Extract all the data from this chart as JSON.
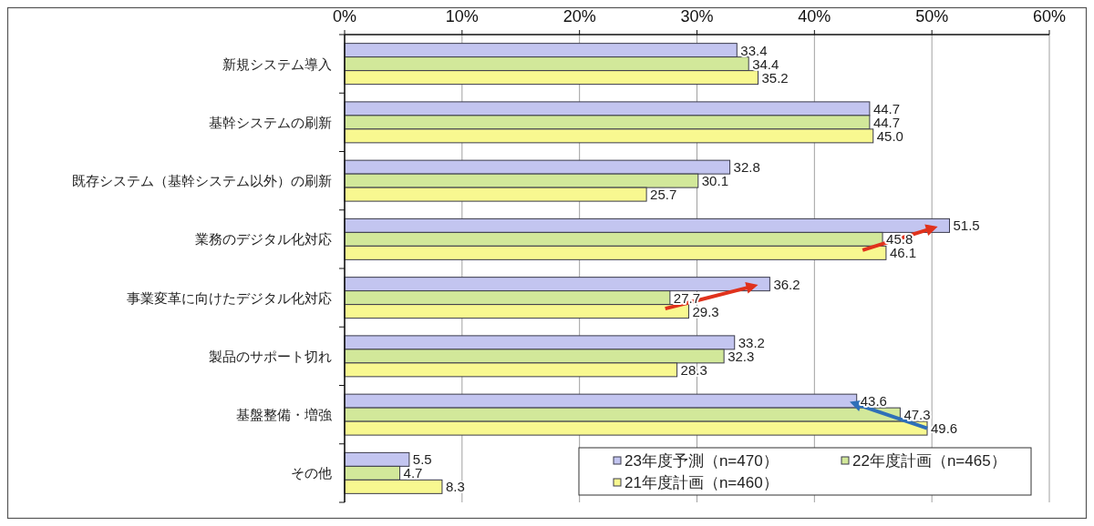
{
  "chart_data": {
    "type": "bar",
    "orientation": "horizontal",
    "categories": [
      "新規システム導入",
      "基幹システムの刷新",
      "既存システム（基幹システム以外）の刷新",
      "業務のデジタル化対応",
      "事業変革に向けたデジタル化対応",
      "製品のサポート切れ",
      "基盤整備・増強",
      "その他"
    ],
    "series": [
      {
        "name": "23年度予測（n=470）",
        "color": "#c3c5f0",
        "values": [
          33.4,
          44.7,
          32.8,
          51.5,
          36.2,
          33.2,
          43.6,
          5.5
        ],
        "value_labels": [
          "33.4",
          "44.7",
          "32.8",
          "51.5",
          "36.2",
          "33.2",
          "43.6",
          "5.5"
        ]
      },
      {
        "name": "22年度計画（n=465）",
        "color": "#d2e89a",
        "values": [
          34.4,
          44.7,
          30.1,
          45.8,
          27.7,
          32.3,
          47.3,
          4.7
        ],
        "value_labels": [
          "34.4",
          "44.7",
          "30.1",
          "45.8",
          "27.7",
          "32.3",
          "47.3",
          "4.7"
        ]
      },
      {
        "name": "21年度計画（n=460）",
        "color": "#f8f890",
        "values": [
          35.2,
          45.0,
          25.7,
          46.1,
          29.3,
          28.3,
          49.6,
          8.3
        ],
        "value_labels": [
          "35.2",
          "45.0",
          "25.7",
          "46.1",
          "29.3",
          "28.3",
          "49.6",
          "8.3"
        ]
      }
    ],
    "xlim": [
      0,
      60
    ],
    "xticks": [
      {
        "value": 0,
        "label": "0%"
      },
      {
        "value": 10,
        "label": "10%"
      },
      {
        "value": 20,
        "label": "20%"
      },
      {
        "value": 30,
        "label": "30%"
      },
      {
        "value": 40,
        "label": "40%"
      },
      {
        "value": 50,
        "label": "50%"
      },
      {
        "value": 60,
        "label": "60%"
      }
    ],
    "grid": "x",
    "legend": "bottom right"
  }
}
